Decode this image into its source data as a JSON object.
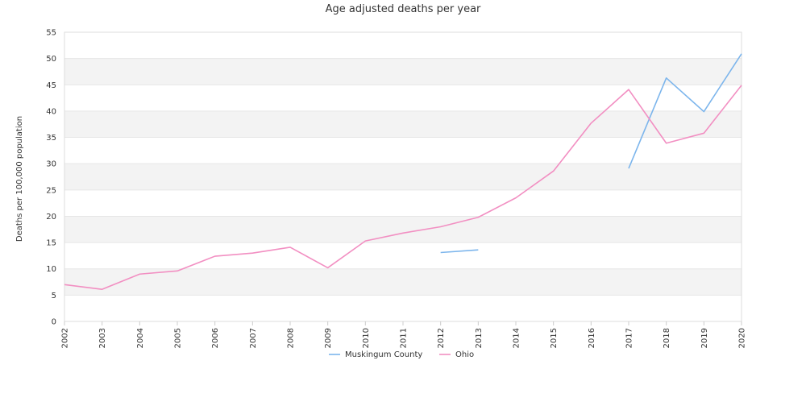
{
  "chart_data": {
    "type": "line",
    "title": "Age adjusted deaths per year",
    "xlabel": "",
    "ylabel": "Deaths per 100,000 population",
    "x": [
      "2002",
      "2003",
      "2004",
      "2005",
      "2006",
      "2007",
      "2008",
      "2009",
      "2010",
      "2011",
      "2012",
      "2013",
      "2014",
      "2015",
      "2016",
      "2017",
      "2018",
      "2019",
      "2020"
    ],
    "ylim": [
      0,
      55
    ],
    "yticks": [
      "0",
      "5",
      "10",
      "15",
      "20",
      "25",
      "30",
      "35",
      "40",
      "45",
      "50",
      "55"
    ],
    "grid": true,
    "legend": "bottom",
    "series": [
      {
        "name": "Muskingum County",
        "color": "#7cb5ec",
        "values": [
          null,
          null,
          null,
          null,
          null,
          null,
          null,
          null,
          null,
          null,
          13.1,
          13.6,
          null,
          null,
          null,
          29.1,
          46.3,
          39.9,
          50.9
        ]
      },
      {
        "name": "Ohio",
        "color": "#f28fc2",
        "values": [
          7.0,
          6.1,
          9.0,
          9.6,
          12.4,
          13.0,
          14.1,
          10.2,
          15.3,
          16.8,
          18.0,
          19.8,
          23.5,
          28.6,
          37.7,
          44.1,
          33.9,
          35.8,
          44.9
        ]
      }
    ]
  }
}
